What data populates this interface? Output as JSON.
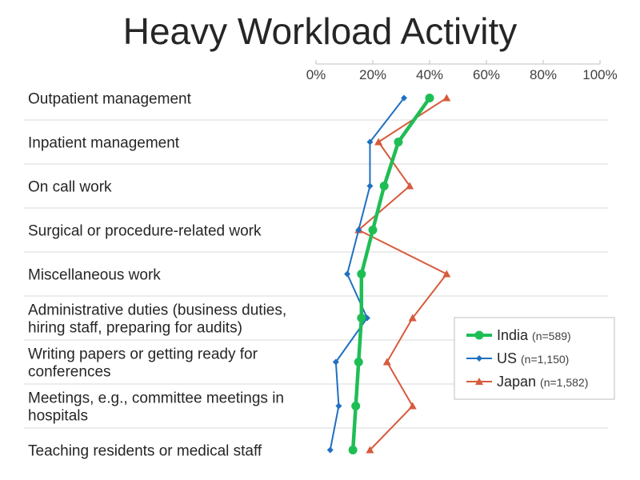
{
  "title": "Heavy Workload Activity",
  "chart_data": {
    "type": "line",
    "orientation": "horizontal",
    "title": "Heavy Workload Activity",
    "categories": [
      [
        "Outpatient management"
      ],
      [
        "Inpatient management"
      ],
      [
        "On call work"
      ],
      [
        "Surgical or procedure-related work"
      ],
      [
        "Miscellaneous work"
      ],
      [
        "Administrative duties (business duties,",
        "hiring staff, preparing for audits)"
      ],
      [
        "Writing papers or getting ready for",
        "conferences"
      ],
      [
        "Meetings, e.g., committee meetings in",
        "hospitals"
      ],
      [
        "Teaching residents or medical staff"
      ]
    ],
    "x_ticks": [
      "0%",
      "20%",
      "40%",
      "60%",
      "80%",
      "100%"
    ],
    "xlim": [
      0,
      100
    ],
    "grid": true,
    "legend_position": "right",
    "series": [
      {
        "name": "India",
        "n": "(n=589)",
        "color": "#1fbe55",
        "marker": "circle",
        "values": [
          40,
          29,
          24,
          20,
          16,
          16,
          15,
          14,
          13
        ]
      },
      {
        "name": "US",
        "n": "(n=1,150)",
        "color": "#1f70c1",
        "marker": "diamond",
        "values": [
          31,
          19,
          19,
          15,
          11,
          18,
          7,
          8,
          5
        ]
      },
      {
        "name": "Japan",
        "n": "(n=1,582)",
        "color": "#d75b3c",
        "marker": "triangle",
        "values": [
          46,
          22,
          33,
          15,
          46,
          34,
          25,
          34,
          19
        ]
      }
    ]
  }
}
